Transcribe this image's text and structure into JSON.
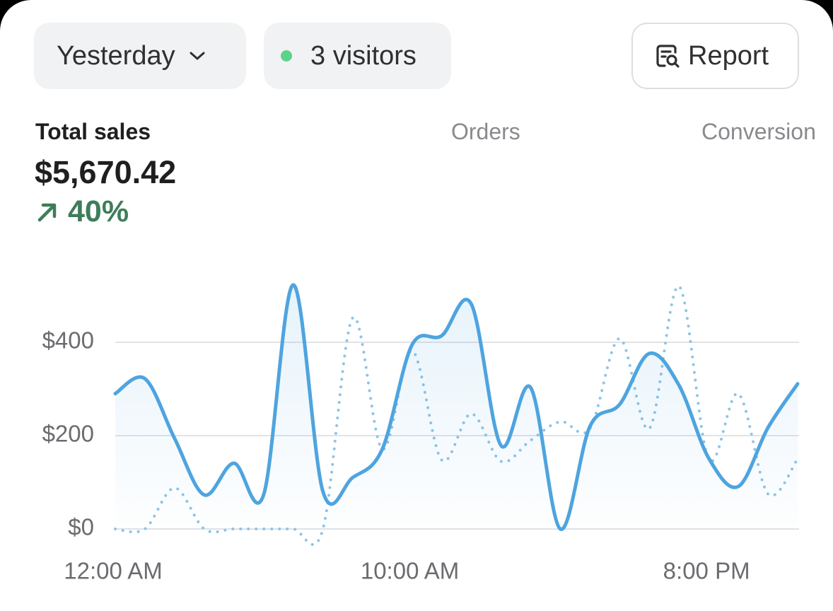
{
  "header": {
    "date_filter": "Yesterday",
    "visitors": "3 visitors",
    "report_button": "Report"
  },
  "metrics": {
    "tabs": [
      {
        "label": "Total sales",
        "value": "$5,670.42",
        "change": "40%"
      },
      {
        "label": "Orders"
      },
      {
        "label": "Conversion"
      }
    ]
  },
  "chart_data": {
    "type": "line",
    "categories": [
      "12:00 AM",
      null,
      null,
      null,
      null,
      null,
      null,
      null,
      null,
      null,
      "10:00 AM",
      null,
      null,
      null,
      null,
      null,
      null,
      null,
      null,
      null,
      "8:00 PM",
      null,
      null,
      null
    ],
    "series": [
      {
        "color": "#4ea4df",
        "line_style": "solid",
        "area": true,
        "values": [
          290,
          322,
          194,
          73,
          141,
          73,
          523,
          80,
          110,
          171,
          394,
          414,
          482,
          179,
          303,
          0,
          220,
          267,
          376,
          308,
          152,
          91,
          217,
          311
        ]
      },
      {
        "color": "#8cc4e6",
        "line_style": "dotted",
        "area": false,
        "values": [
          0,
          0,
          88,
          0,
          0,
          0,
          0,
          0,
          452,
          171,
          382,
          148,
          247,
          145,
          190,
          230,
          215,
          408,
          215,
          520,
          150,
          290,
          75,
          150
        ]
      }
    ],
    "ylim": [
      0,
      540
    ],
    "yticks": [
      {
        "value": 0,
        "label": "$0"
      },
      {
        "value": 200,
        "label": "$200"
      },
      {
        "value": 400,
        "label": "$400"
      }
    ],
    "grid": true
  }
}
